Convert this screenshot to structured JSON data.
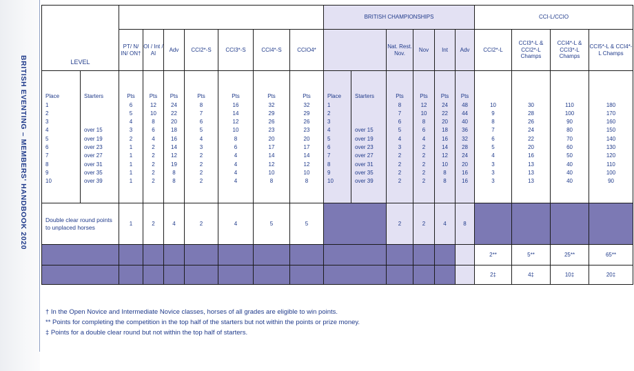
{
  "side_title": "BRITISH EVENTING – MEMBERS' HANDBOOK 2020",
  "header": {
    "level": "LEVEL",
    "british_championships": "BRITISH CHAMPIONSHIPS",
    "cci_group": "CCI-L/CCIO",
    "columns": {
      "pt": "PT/ N/ IN/ ON†",
      "oi": "OI / Int / AI",
      "adv": "Adv",
      "cci2s": "CCI2*-S",
      "cci3s": "CCI3*-S",
      "cci4s": "CCI4*-S",
      "ccio4": "CCIO4*",
      "bc_natrest": "Nat. Rest. Nov.",
      "bc_nov": "Nov",
      "bc_int": "Int",
      "bc_adv": "Adv",
      "cci2l": "CCI2*-L",
      "cci3l": "CCI3*-L & CCI2*-L Champs",
      "cci4l": "CCI4*-L & CCI3*-L Champs",
      "cci5l": "CCI5*-L & CCI4*-L Champs"
    }
  },
  "captions": {
    "place": "Place",
    "starters": "Starters",
    "pts": "Pts"
  },
  "places": [
    "1",
    "2",
    "3",
    "4",
    "5",
    "6",
    "7",
    "8",
    "9",
    "10"
  ],
  "starters": [
    "",
    "",
    "",
    "over 15",
    "over 19",
    "over 23",
    "over 27",
    "over 31",
    "over 35",
    "over 39"
  ],
  "columns_data": {
    "pt": [
      "6",
      "5",
      "4",
      "3",
      "2",
      "1",
      "1",
      "1",
      "1",
      "1"
    ],
    "oi": [
      "12",
      "10",
      "8",
      "6",
      "4",
      "2",
      "2",
      "2",
      "2",
      "2"
    ],
    "adv": [
      "24",
      "22",
      "20",
      "18",
      "16",
      "14",
      "12",
      "19",
      "8",
      "8"
    ],
    "cci2s": [
      "8",
      "7",
      "6",
      "5",
      "4",
      "3",
      "2",
      "2",
      "2",
      "2"
    ],
    "cci3s": [
      "16",
      "14",
      "12",
      "10",
      "8",
      "6",
      "4",
      "4",
      "4",
      "4"
    ],
    "cci4s": [
      "32",
      "29",
      "26",
      "23",
      "20",
      "17",
      "14",
      "12",
      "10",
      "8"
    ],
    "ccio4": [
      "32",
      "29",
      "26",
      "23",
      "20",
      "17",
      "14",
      "12",
      "10",
      "8"
    ],
    "bc_natrest": [
      "8",
      "7",
      "6",
      "5",
      "4",
      "3",
      "2",
      "2",
      "2",
      "2"
    ],
    "bc_nov": [
      "12",
      "10",
      "8",
      "6",
      "4",
      "2",
      "2",
      "2",
      "2",
      "2"
    ],
    "bc_int": [
      "24",
      "22",
      "20",
      "18",
      "16",
      "14",
      "12",
      "10",
      "8",
      "8"
    ],
    "bc_adv": [
      "48",
      "44",
      "40",
      "36",
      "32",
      "28",
      "24",
      "20",
      "16",
      "16"
    ],
    "cci2l": [
      "10",
      "9",
      "8",
      "7",
      "6",
      "5",
      "4",
      "3",
      "3",
      "3"
    ],
    "cci3l": [
      "30",
      "28",
      "26",
      "24",
      "22",
      "20",
      "16",
      "13",
      "13",
      "13"
    ],
    "cci4l": [
      "110",
      "100",
      "90",
      "80",
      "70",
      "60",
      "50",
      "40",
      "40",
      "40"
    ],
    "cci5l": [
      "180",
      "170",
      "160",
      "150",
      "140",
      "130",
      "120",
      "110",
      "100",
      "90"
    ]
  },
  "double_clear": {
    "label": "Double clear round points to unplaced horses",
    "pt": "1",
    "oi": "2",
    "adv": "4",
    "cci2s": "2",
    "cci3s": "4",
    "cci4s": "5",
    "ccio4": "5",
    "bc_natrest": "2",
    "bc_nov": "2",
    "bc_int": "4",
    "bc_adv": "8"
  },
  "top_half_row": {
    "cci2l": "2**",
    "cci3l": "5**",
    "cci4l": "25**",
    "cci5l": "65**"
  },
  "dcr_not_top_half_row": {
    "cci2l": "2‡",
    "cci3l": "4‡",
    "cci4l": "10‡",
    "cci5l": "20‡"
  },
  "footnotes": [
    "† In the Open Novice and Intermediate Novice classes, horses of all grades are eligible to win points.",
    "** Points for completing the competition in the top half of the starters but not within the points or prize money.",
    "‡ Points for a double clear round but not within the top half of starters."
  ],
  "colors": {
    "text": "#1f3a8a",
    "light_fill": "#e3e1f3",
    "dark_fill": "#7c79b4",
    "border": "#1a1a1a"
  }
}
